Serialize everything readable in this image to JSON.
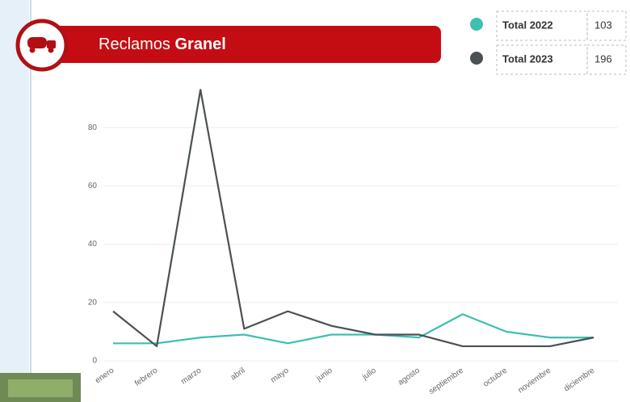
{
  "chart_data": {
    "type": "line",
    "title": [
      "Reclamos",
      "Granel"
    ],
    "categories": [
      "enero",
      "febrero",
      "marzo",
      "abril",
      "mayo",
      "junio",
      "julio",
      "agosto",
      "septiembre",
      "octubre",
      "noviembre",
      "diciembre"
    ],
    "series": [
      {
        "name": "Total 2022",
        "total": 103,
        "color": "#3dbfb1",
        "values": [
          6,
          6,
          8,
          9,
          6,
          9,
          9,
          8,
          16,
          10,
          8,
          8
        ]
      },
      {
        "name": "Total 2023",
        "total": 196,
        "color": "#4a5153",
        "values": [
          17,
          5,
          93,
          11,
          17,
          12,
          9,
          9,
          5,
          5,
          5,
          8
        ]
      }
    ],
    "ylim": [
      0,
      95
    ],
    "yticks": [
      0,
      20,
      40,
      60,
      80
    ],
    "grid": true
  }
}
